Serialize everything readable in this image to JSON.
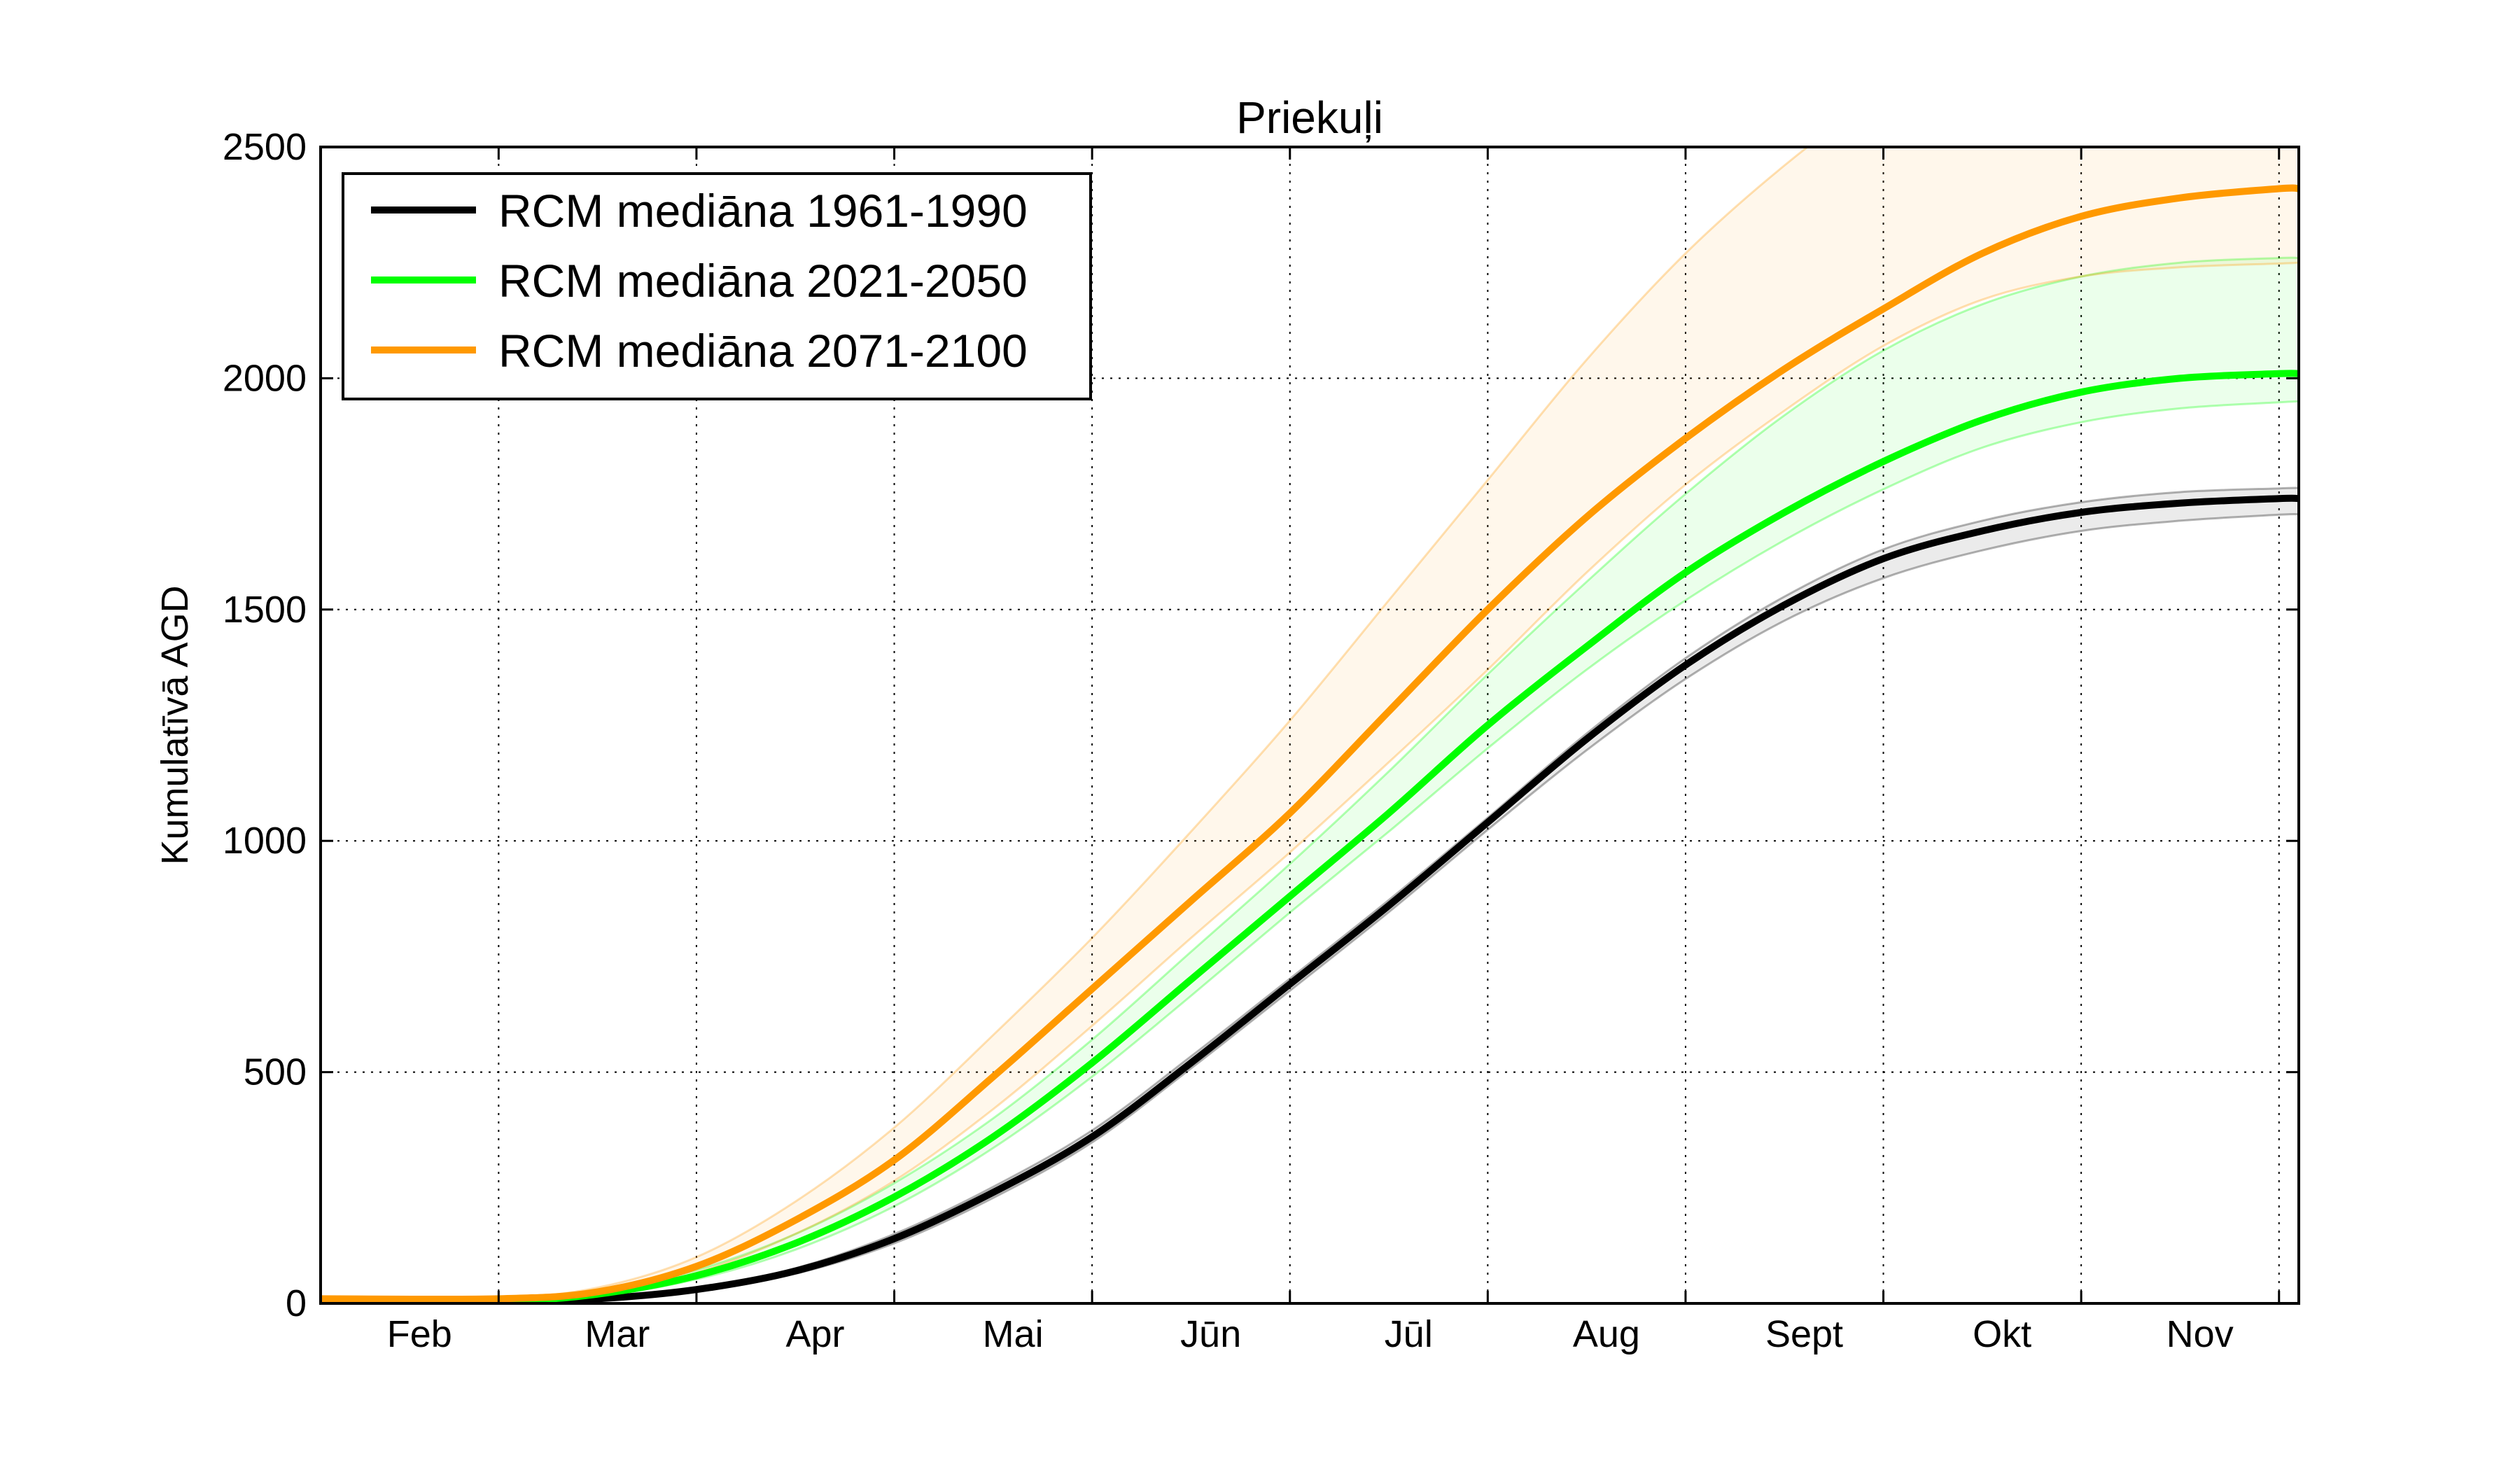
{
  "chart_data": {
    "type": "line",
    "title": "Priekuļi",
    "xlabel": "",
    "ylabel": "Kumulatīvā AGD",
    "xlim": [
      0,
      10
    ],
    "ylim": [
      0,
      2500
    ],
    "x_ticks": [
      {
        "label": "Feb",
        "x": 0.5
      },
      {
        "label": "Mar",
        "x": 1.5
      },
      {
        "label": "Apr",
        "x": 2.5
      },
      {
        "label": "Mai",
        "x": 3.5
      },
      {
        "label": "Jūn",
        "x": 4.5
      },
      {
        "label": "Jūl",
        "x": 5.5
      },
      {
        "label": "Aug",
        "x": 6.5
      },
      {
        "label": "Sept",
        "x": 7.5
      },
      {
        "label": "Okt",
        "x": 8.5
      },
      {
        "label": "Nov",
        "x": 9.5
      }
    ],
    "y_ticks": [
      0,
      500,
      1000,
      1500,
      2000,
      2500
    ],
    "x_grid": [
      0.9,
      1.9,
      2.9,
      3.9,
      4.9,
      5.9,
      6.9,
      7.9,
      8.9,
      9.9
    ],
    "grid": true,
    "legend_position": "top-left",
    "x": [
      0,
      0.9,
      1.4,
      1.9,
      2.4,
      2.9,
      3.4,
      3.9,
      4.4,
      4.9,
      5.4,
      5.9,
      6.4,
      6.9,
      7.4,
      7.9,
      8.4,
      8.9,
      9.4,
      9.9,
      10.0
    ],
    "series": [
      {
        "name": "RCM mediāna 1961-1990",
        "color": "#000000",
        "values": [
          5,
          5,
          10,
          30,
          70,
          140,
          240,
          360,
          520,
          690,
          860,
          1040,
          1220,
          1380,
          1510,
          1610,
          1670,
          1710,
          1730,
          1740,
          1740
        ],
        "band_low": [
          5,
          5,
          8,
          26,
          64,
          130,
          228,
          348,
          508,
          676,
          846,
          1024,
          1196,
          1350,
          1476,
          1568,
          1628,
          1670,
          1692,
          1705,
          1706
        ],
        "band_high": [
          5,
          5,
          12,
          34,
          76,
          150,
          252,
          374,
          534,
          702,
          872,
          1050,
          1232,
          1395,
          1528,
          1630,
          1692,
          1732,
          1754,
          1762,
          1763
        ]
      },
      {
        "name": "RCM mediāna 2021-2050",
        "color": "#00ff00",
        "values": [
          5,
          5,
          20,
          60,
          130,
          230,
          360,
          520,
          700,
          880,
          1060,
          1250,
          1420,
          1580,
          1710,
          1820,
          1910,
          1970,
          2000,
          2010,
          2010
        ],
        "band_low": [
          5,
          5,
          16,
          52,
          116,
          210,
          336,
          490,
          665,
          845,
          1020,
          1200,
          1370,
          1520,
          1650,
          1760,
          1850,
          1905,
          1935,
          1948,
          1950
        ],
        "band_high": [
          5,
          5,
          26,
          72,
          150,
          260,
          400,
          570,
          760,
          950,
          1150,
          1360,
          1560,
          1750,
          1920,
          2060,
          2160,
          2220,
          2250,
          2260,
          2260
        ]
      },
      {
        "name": "RCM mediāna 2071-2100",
        "color": "#ff9900",
        "values": [
          10,
          10,
          25,
          80,
          180,
          310,
          490,
          680,
          870,
          1060,
          1280,
          1500,
          1700,
          1870,
          2020,
          2150,
          2270,
          2350,
          2390,
          2410,
          2410
        ],
        "band_low": [
          5,
          5,
          20,
          66,
          150,
          265,
          420,
          600,
          790,
          975,
          1170,
          1370,
          1580,
          1770,
          1930,
          2070,
          2170,
          2220,
          2240,
          2248,
          2250
        ],
        "band_high": [
          12,
          12,
          34,
          100,
          220,
          380,
          580,
          790,
          1020,
          1260,
          1520,
          1780,
          2040,
          2270,
          2460,
          2620,
          2740,
          2820,
          2860,
          2880,
          2880
        ]
      }
    ]
  }
}
